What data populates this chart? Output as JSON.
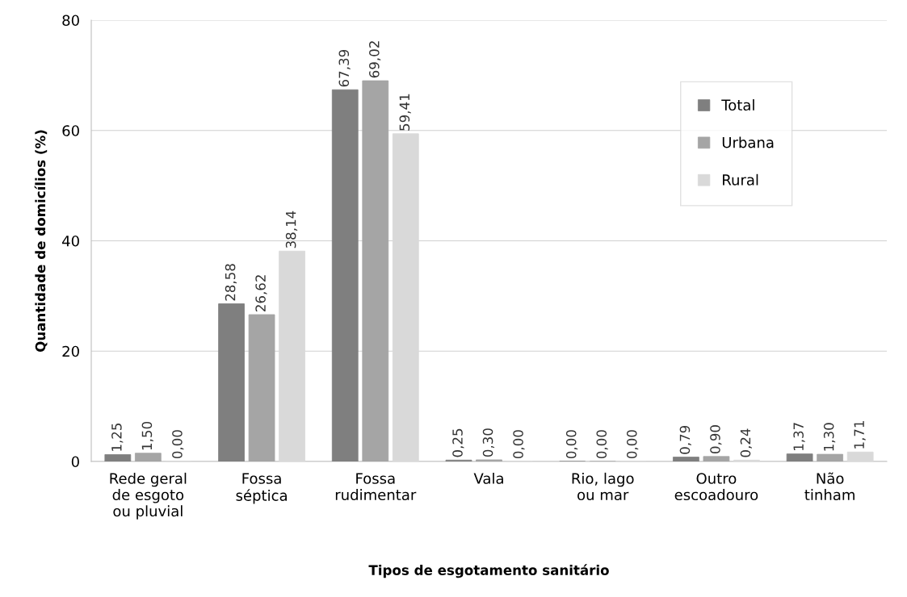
{
  "chart_data": {
    "type": "bar",
    "xlabel": "Tipos de esgotamento sanitário",
    "ylabel": "Quantidade de domicílios (%)",
    "categories": [
      "Rede geral\nde esgoto\nou pluvial",
      "Fossa\nséptica",
      "Fossa\nrudimentar",
      "Vala",
      "Rio, lago\nou mar",
      "Outro\nescoadouro",
      "Não\ntinham"
    ],
    "series": [
      {
        "name": "Total",
        "color": "#7f7f7f",
        "values": [
          1.25,
          28.58,
          67.39,
          0.25,
          0.0,
          0.79,
          1.37
        ],
        "value_labels": [
          "1,25",
          "28,58",
          "67,39",
          "0,25",
          "0,00",
          "0,79",
          "1,37"
        ]
      },
      {
        "name": "Urbana",
        "color": "#a5a5a5",
        "values": [
          1.5,
          26.62,
          69.02,
          0.3,
          0.0,
          0.9,
          1.3
        ],
        "value_labels": [
          "1,50",
          "26,62",
          "69,02",
          "0,30",
          "0,00",
          "0,90",
          "1,30"
        ]
      },
      {
        "name": "Rural",
        "color": "#d9d9d9",
        "values": [
          0.0,
          38.14,
          59.41,
          0.0,
          0.0,
          0.24,
          1.71
        ],
        "value_labels": [
          "0,00",
          "38,14",
          "59,41",
          "0,00",
          "0,00",
          "0,24",
          "1,71"
        ]
      }
    ],
    "ylim": [
      0,
      80
    ],
    "yticks": [
      0,
      20,
      40,
      60,
      80
    ],
    "grid": "y",
    "legend": "right"
  }
}
